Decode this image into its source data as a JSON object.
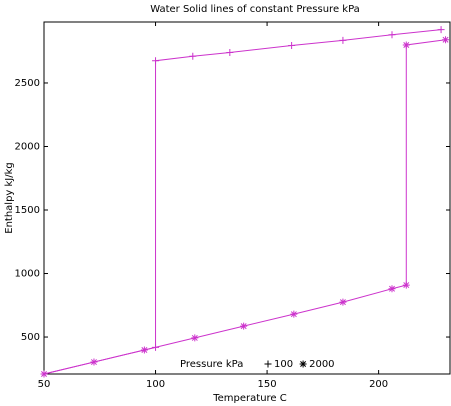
{
  "chart_data": {
    "type": "line",
    "title": "Water Solid lines of constant Pressure kPa",
    "xlabel": "Temperature C",
    "ylabel": "Enthalpy kJ/kg",
    "legend_title": "Pressure kPa",
    "xlim": [
      50,
      232
    ],
    "ylim": [
      209,
      2980
    ],
    "xticks": [
      50,
      100,
      150,
      200
    ],
    "yticks": [
      500,
      1000,
      1500,
      2000,
      2500
    ],
    "series": [
      {
        "name": "100",
        "color": "#cc33cc",
        "marker": "plus",
        "x": [
          50,
          100,
          100,
          116.7,
          133.3,
          161,
          184,
          206,
          228
        ],
        "values": [
          209,
          419,
          2675,
          2710,
          2740,
          2795,
          2835,
          2880,
          2920
        ]
      },
      {
        "name": "2000",
        "color": "#cc33cc",
        "marker": "star",
        "x": [
          50,
          72.4,
          95,
          117.6,
          139.5,
          162,
          184,
          206,
          212.4,
          212.4,
          230
        ],
        "values": [
          209,
          303,
          398,
          493,
          586,
          680,
          775,
          880,
          909,
          2799,
          2840
        ]
      }
    ]
  }
}
